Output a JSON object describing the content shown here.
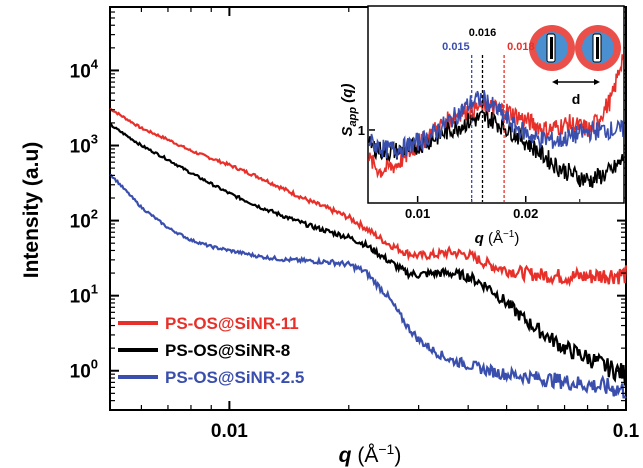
{
  "chart_data": [
    {
      "type": "line",
      "xscale": "log",
      "yscale": "log",
      "xlim": [
        0.005,
        0.1
      ],
      "ylim": [
        0.3,
        70000
      ],
      "xlabel": "q (Å⁻¹)",
      "xlabel_main": "q",
      "xlabel_unit": " (Å",
      "xlabel_exp": "−1",
      "xlabel_close": ")",
      "ylabel": "Intensity (a.u)",
      "xticks": [
        {
          "value": 0.01,
          "label": "0.01"
        },
        {
          "value": 0.1,
          "label": "0.1"
        }
      ],
      "yticks": [
        {
          "value": 1,
          "base": "10",
          "exp": "0"
        },
        {
          "value": 10,
          "base": "10",
          "exp": "1"
        },
        {
          "value": 100,
          "base": "10",
          "exp": "2"
        },
        {
          "value": 1000,
          "base": "10",
          "exp": "3"
        },
        {
          "value": 10000,
          "base": "10",
          "exp": "4"
        }
      ],
      "legend_position": "bottom-left",
      "series": [
        {
          "name": "PS-OS@SiNR-11",
          "color": "#e8302a",
          "x": [
            0.005,
            0.006,
            0.007,
            0.008,
            0.01,
            0.012,
            0.014,
            0.016,
            0.018,
            0.02,
            0.022,
            0.025,
            0.028,
            0.03,
            0.033,
            0.036,
            0.04,
            0.045,
            0.05,
            0.055,
            0.06,
            0.07,
            0.08,
            0.09,
            0.1
          ],
          "y": [
            3100,
            1700,
            1200,
            850,
            550,
            370,
            250,
            180,
            140,
            110,
            80,
            50,
            37,
            34,
            35,
            38,
            35,
            26,
            22,
            20,
            19,
            18,
            18,
            19,
            19
          ]
        },
        {
          "name": "PS-OS@SiNR-8",
          "color": "#000000",
          "x": [
            0.005,
            0.006,
            0.007,
            0.008,
            0.01,
            0.012,
            0.014,
            0.016,
            0.018,
            0.02,
            0.022,
            0.025,
            0.028,
            0.03,
            0.033,
            0.036,
            0.04,
            0.045,
            0.05,
            0.055,
            0.06,
            0.07,
            0.08,
            0.09,
            0.1
          ],
          "y": [
            1900,
            1000,
            650,
            430,
            230,
            150,
            110,
            85,
            70,
            60,
            48,
            30,
            20,
            19,
            20,
            20,
            18,
            13,
            8,
            5,
            3.5,
            2,
            1.5,
            1.1,
            0.9
          ]
        },
        {
          "name": "PS-OS@SiNR-2.5",
          "color": "#3a4fad",
          "x": [
            0.005,
            0.006,
            0.007,
            0.008,
            0.009,
            0.01,
            0.012,
            0.014,
            0.016,
            0.018,
            0.02,
            0.022,
            0.025,
            0.028,
            0.03,
            0.033,
            0.036,
            0.04,
            0.045,
            0.05,
            0.06,
            0.07,
            0.08,
            0.09,
            0.1
          ],
          "y": [
            420,
            150,
            80,
            55,
            45,
            40,
            33,
            30,
            29,
            28,
            26,
            21,
            10,
            4,
            2.6,
            1.8,
            1.4,
            1.2,
            1.0,
            0.9,
            0.8,
            0.72,
            0.65,
            0.6,
            0.55
          ]
        }
      ]
    },
    {
      "type": "line",
      "inset": true,
      "xscale": "linear",
      "yscale": "log",
      "xlim": [
        0.0055,
        0.029
      ],
      "ylim": [
        0.35,
        6
      ],
      "xlabel": "q (Å⁻¹)",
      "xlabel_main": "q",
      "xlabel_unit": " (Å",
      "xlabel_exp": "−1",
      "xlabel_close": ")",
      "ylabel": "Sapp (q)",
      "ylabel_main": "S",
      "ylabel_sub": "app",
      "ylabel_tail": " (q)",
      "xticks": [
        {
          "value": 0.01,
          "label": "0.01"
        },
        {
          "value": 0.02,
          "label": "0.02"
        }
      ],
      "yticks": [
        {
          "value": 1,
          "label": "1"
        }
      ],
      "peaks": [
        {
          "q": 0.015,
          "label": "0.015",
          "color": "#3a4fad"
        },
        {
          "q": 0.016,
          "label": "0.016",
          "color": "#000000"
        },
        {
          "q": 0.018,
          "label": "0.018",
          "color": "#e8302a"
        }
      ],
      "annotation": "d",
      "series": [
        {
          "color": "#e8302a",
          "x": [
            0.0055,
            0.0065,
            0.008,
            0.01,
            0.012,
            0.014,
            0.016,
            0.018,
            0.02,
            0.022,
            0.024,
            0.026,
            0.028,
            0.029
          ],
          "y": [
            0.65,
            0.55,
            0.6,
            0.8,
            1.05,
            1.3,
            1.4,
            1.35,
            1.15,
            1.0,
            1.1,
            1.0,
            1.6,
            3.0
          ]
        },
        {
          "color": "#000000",
          "x": [
            0.0055,
            0.007,
            0.009,
            0.011,
            0.013,
            0.015,
            0.016,
            0.017,
            0.019,
            0.021,
            0.023,
            0.025,
            0.026,
            0.028,
            0.029
          ],
          "y": [
            0.8,
            0.72,
            0.75,
            0.85,
            1.0,
            1.15,
            1.2,
            1.15,
            0.95,
            0.75,
            0.58,
            0.5,
            0.48,
            0.55,
            0.65
          ]
        },
        {
          "color": "#3a4fad",
          "x": [
            0.0055,
            0.007,
            0.009,
            0.011,
            0.013,
            0.015,
            0.016,
            0.017,
            0.019,
            0.021,
            0.023,
            0.025,
            0.027,
            0.029
          ],
          "y": [
            0.85,
            0.75,
            0.78,
            0.9,
            1.15,
            1.5,
            1.6,
            1.4,
            1.05,
            0.88,
            0.85,
            0.95,
            1.0,
            1.0
          ]
        }
      ]
    }
  ]
}
